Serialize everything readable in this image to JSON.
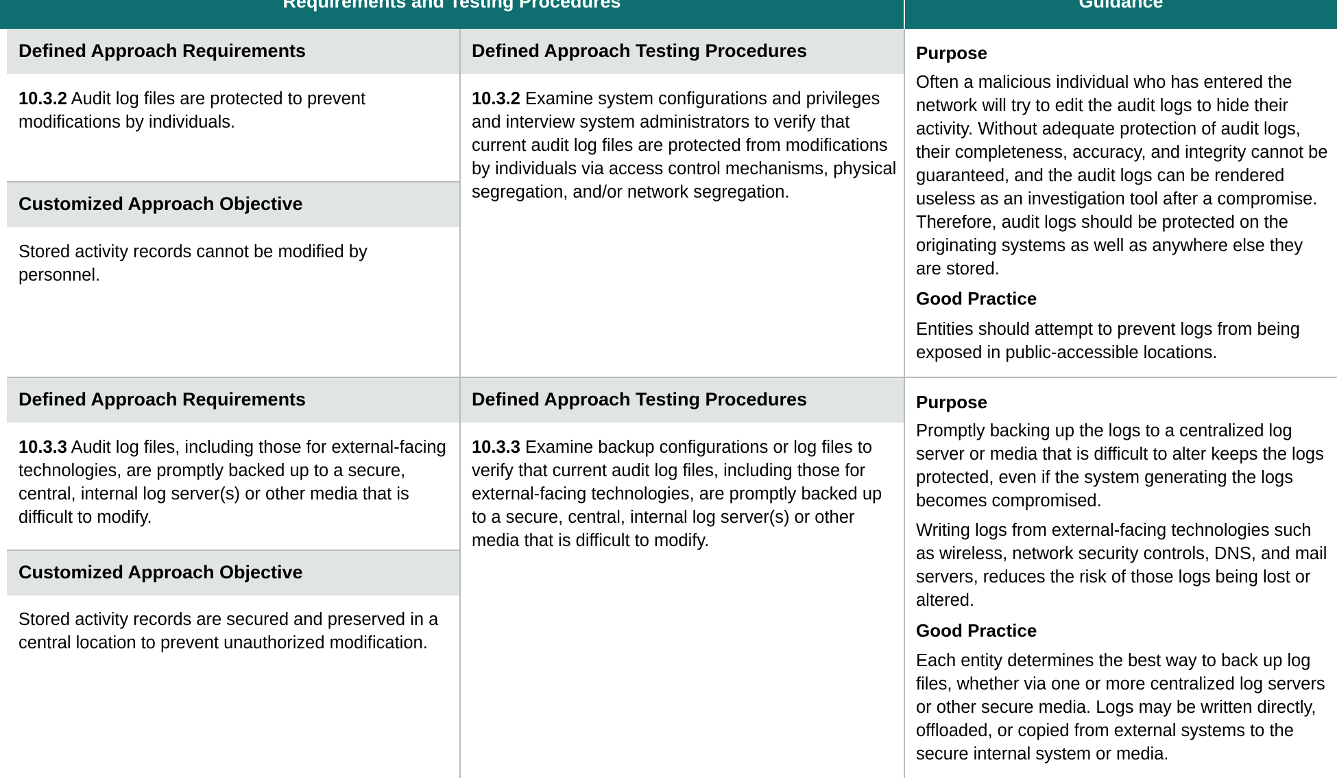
{
  "header": {
    "left_title": "Requirements and Testing Procedures",
    "right_title": "Guidance"
  },
  "rows": [
    {
      "requirements_heading": "Defined Approach Requirements",
      "requirement_number": "10.3.2",
      "requirement_text": " Audit log files are protected to prevent modifications by individuals.",
      "objective_heading": "Customized Approach Objective",
      "objective_text": "Stored activity records cannot be modified by personnel.",
      "testing_heading": "Defined Approach Testing Procedures",
      "testing_number": "10.3.2",
      "testing_text": " Examine system configurations and privileges and interview system administrators to verify that current audit log files are protected from modifications by individuals via access control mechanisms, physical segregation, and/or network segregation.",
      "guidance": {
        "purpose_heading": "Purpose",
        "purpose_paragraphs": [
          "Often a malicious individual who has entered the network will try to edit the audit logs to hide their activity. Without adequate protection of audit logs, their completeness, accuracy, and integrity cannot be guaranteed, and the audit logs can be rendered useless as an investigation tool after a compromise. Therefore, audit logs should be protected on the originating systems as well as anywhere else they are stored."
        ],
        "good_practice_heading": "Good Practice",
        "good_practice_paragraphs": [
          "Entities should attempt to prevent logs from being exposed in public-accessible locations."
        ]
      }
    },
    {
      "requirements_heading": "Defined Approach Requirements",
      "requirement_number": "10.3.3",
      "requirement_text": " Audit log files, including those for external-facing technologies, are promptly backed up to a secure, central, internal log server(s) or other media that is difficult to modify.",
      "objective_heading": "Customized Approach Objective",
      "objective_text": "Stored activity records are secured and preserved in a central location to prevent unauthorized modification.",
      "testing_heading": "Defined Approach Testing Procedures",
      "testing_number": "10.3.3",
      "testing_text": " Examine backup configurations or log files to verify that current audit log files, including those for external-facing technologies, are promptly backed up to a secure, central, internal log server(s) or other media that is difficult to modify.",
      "guidance": {
        "purpose_heading": "Purpose",
        "purpose_paragraphs": [
          "Promptly backing up the logs to a centralized log server or media that is difficult to alter keeps the logs protected, even if the system generating the logs becomes compromised.",
          "Writing logs from external-facing technologies such as wireless, network security controls, DNS, and mail servers, reduces the risk of those logs being lost or altered."
        ],
        "good_practice_heading": "Good Practice",
        "good_practice_paragraphs": [
          "Each entity determines the best way to back up log files, whether via one or more centralized log servers or other secure media. Logs may be written directly, offloaded, or copied from external systems to the secure internal system or media."
        ]
      }
    }
  ],
  "colors": {
    "header_bg": "#0e6e70",
    "band_bg": "#e1e4e5",
    "rule": "#b9bcbc"
  }
}
